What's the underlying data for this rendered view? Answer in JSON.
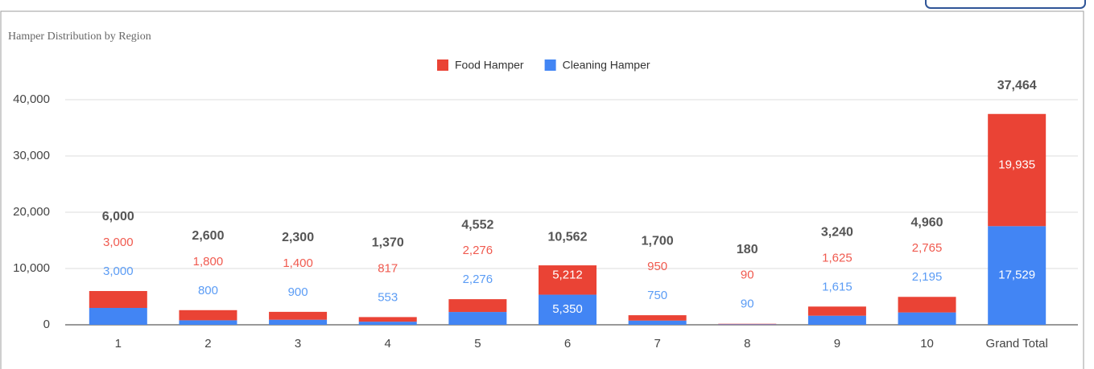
{
  "chart_data": {
    "type": "stacked_bar",
    "title": "Hamper Distribution by Region",
    "categories": [
      "1",
      "2",
      "3",
      "4",
      "5",
      "6",
      "7",
      "8",
      "9",
      "10",
      "Grand Total"
    ],
    "series": [
      {
        "name": "Food Hamper",
        "color": "#ea4335",
        "values": [
          3000,
          1800,
          1400,
          817,
          2276,
          5212,
          950,
          90,
          1625,
          2765,
          19935
        ],
        "value_labels": [
          "3,000",
          "1,800",
          "1,400",
          "817",
          "2,276",
          "5,212",
          "950",
          "90",
          "1,625",
          "2,765",
          "19,935"
        ]
      },
      {
        "name": "Cleaning Hamper",
        "color": "#4285f4",
        "values": [
          3000,
          800,
          900,
          553,
          2276,
          5350,
          750,
          90,
          1615,
          2195,
          17529
        ],
        "value_labels": [
          "3,000",
          "800",
          "900",
          "553",
          "2,276",
          "5,350",
          "750",
          "90",
          "1,615",
          "2,195",
          "17,529"
        ]
      }
    ],
    "totals": [
      6000,
      2600,
      2300,
      1370,
      4552,
      10562,
      1700,
      180,
      3240,
      4960,
      37464
    ],
    "total_labels": [
      "6,000",
      "2,600",
      "2,300",
      "1,370",
      "4,552",
      "10,562",
      "1,700",
      "180",
      "3,240",
      "4,960",
      "37,464"
    ],
    "ylim": [
      0,
      44000
    ],
    "yticks": [
      0,
      {
        "value": 10000,
        "label": "10,000"
      },
      {
        "value": 20000,
        "label": "20,000"
      },
      {
        "value": 30000,
        "label": "30,000"
      },
      {
        "value": 40000,
        "label": "40,000"
      }
    ],
    "grid": true,
    "legend": "top"
  }
}
